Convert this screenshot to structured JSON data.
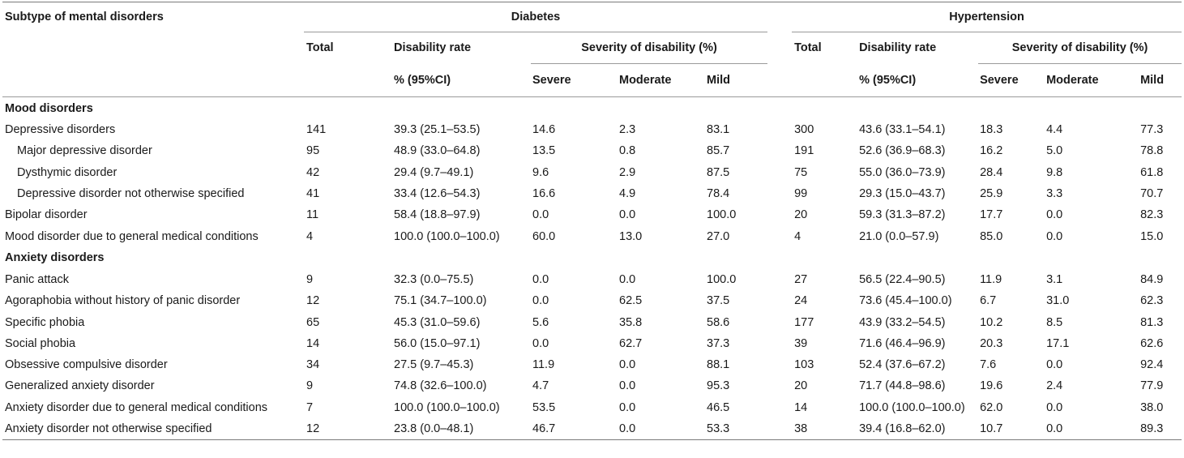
{
  "header": {
    "subtype": "Subtype of mental disorders",
    "diabetes": "Diabetes",
    "hypertension": "Hypertension",
    "total": "Total",
    "disability_rate": "Disability rate",
    "pct_ci": "% (95%CI)",
    "severity": "Severity of disability (%)",
    "severe": "Severe",
    "moderate": "Moderate",
    "mild": "Mild"
  },
  "groups": [
    {
      "name": "Mood disorders",
      "rows": [
        {
          "label": "Depressive disorders",
          "indent": false,
          "d": [
            "141",
            "39.3 (25.1–53.5)",
            "14.6",
            "2.3",
            "83.1"
          ],
          "h": [
            "300",
            "43.6 (33.1–54.1)",
            "18.3",
            "4.4",
            "77.3"
          ]
        },
        {
          "label": "Major depressive disorder",
          "indent": true,
          "d": [
            "95",
            "48.9 (33.0–64.8)",
            "13.5",
            "0.8",
            "85.7"
          ],
          "h": [
            "191",
            "52.6 (36.9–68.3)",
            "16.2",
            "5.0",
            "78.8"
          ]
        },
        {
          "label": "Dysthymic disorder",
          "indent": true,
          "d": [
            "42",
            "29.4 (9.7–49.1)",
            "9.6",
            "2.9",
            "87.5"
          ],
          "h": [
            "75",
            "55.0 (36.0–73.9)",
            "28.4",
            "9.8",
            "61.8"
          ]
        },
        {
          "label": "Depressive disorder not otherwise specified",
          "indent": true,
          "d": [
            "41",
            "33.4 (12.6–54.3)",
            "16.6",
            "4.9",
            "78.4"
          ],
          "h": [
            "99",
            "29.3 (15.0–43.7)",
            "25.9",
            "3.3",
            "70.7"
          ]
        },
        {
          "label": "Bipolar disorder",
          "indent": false,
          "d": [
            "11",
            "58.4 (18.8–97.9)",
            "0.0",
            "0.0",
            "100.0"
          ],
          "h": [
            "20",
            "59.3 (31.3–87.2)",
            "17.7",
            "0.0",
            "82.3"
          ]
        },
        {
          "label": "Mood disorder due to general medical conditions",
          "indent": false,
          "d": [
            "4",
            "100.0 (100.0–100.0)",
            "60.0",
            "13.0",
            "27.0"
          ],
          "h": [
            "4",
            "21.0 (0.0–57.9)",
            "85.0",
            "0.0",
            "15.0"
          ]
        }
      ]
    },
    {
      "name": "Anxiety disorders",
      "rows": [
        {
          "label": "Panic attack",
          "indent": false,
          "d": [
            "9",
            "32.3 (0.0–75.5)",
            "0.0",
            "0.0",
            "100.0"
          ],
          "h": [
            "27",
            "56.5 (22.4–90.5)",
            "11.9",
            "3.1",
            "84.9"
          ]
        },
        {
          "label": "Agoraphobia without history of panic disorder",
          "indent": false,
          "d": [
            "12",
            "75.1 (34.7–100.0)",
            "0.0",
            "62.5",
            "37.5"
          ],
          "h": [
            "24",
            "73.6 (45.4–100.0)",
            "6.7",
            "31.0",
            "62.3"
          ]
        },
        {
          "label": "Specific phobia",
          "indent": false,
          "d": [
            "65",
            "45.3 (31.0–59.6)",
            "5.6",
            "35.8",
            "58.6"
          ],
          "h": [
            "177",
            "43.9 (33.2–54.5)",
            "10.2",
            "8.5",
            "81.3"
          ]
        },
        {
          "label": "Social phobia",
          "indent": false,
          "d": [
            "14",
            "56.0 (15.0–97.1)",
            "0.0",
            "62.7",
            "37.3"
          ],
          "h": [
            "39",
            "71.6 (46.4–96.9)",
            "20.3",
            "17.1",
            "62.6"
          ]
        },
        {
          "label": "Obsessive compulsive disorder",
          "indent": false,
          "d": [
            "34",
            "27.5 (9.7–45.3)",
            "11.9",
            "0.0",
            "88.1"
          ],
          "h": [
            "103",
            "52.4 (37.6–67.2)",
            "7.6",
            "0.0",
            "92.4"
          ]
        },
        {
          "label": "Generalized anxiety disorder",
          "indent": false,
          "d": [
            "9",
            "74.8 (32.6–100.0)",
            "4.7",
            "0.0",
            "95.3"
          ],
          "h": [
            "20",
            "71.7 (44.8–98.6)",
            "19.6",
            "2.4",
            "77.9"
          ]
        },
        {
          "label": "Anxiety disorder due to general medical conditions",
          "indent": false,
          "d": [
            "7",
            "100.0 (100.0–100.0)",
            "53.5",
            "0.0",
            "46.5"
          ],
          "h": [
            "14",
            "100.0 (100.0–100.0)",
            "62.0",
            "0.0",
            "38.0"
          ]
        },
        {
          "label": "Anxiety disorder not otherwise specified",
          "indent": false,
          "d": [
            "12",
            "23.8 (0.0–48.1)",
            "46.7",
            "0.0",
            "53.3"
          ],
          "h": [
            "38",
            "39.4 (16.8–62.0)",
            "10.7",
            "0.0",
            "89.3"
          ]
        }
      ]
    }
  ]
}
